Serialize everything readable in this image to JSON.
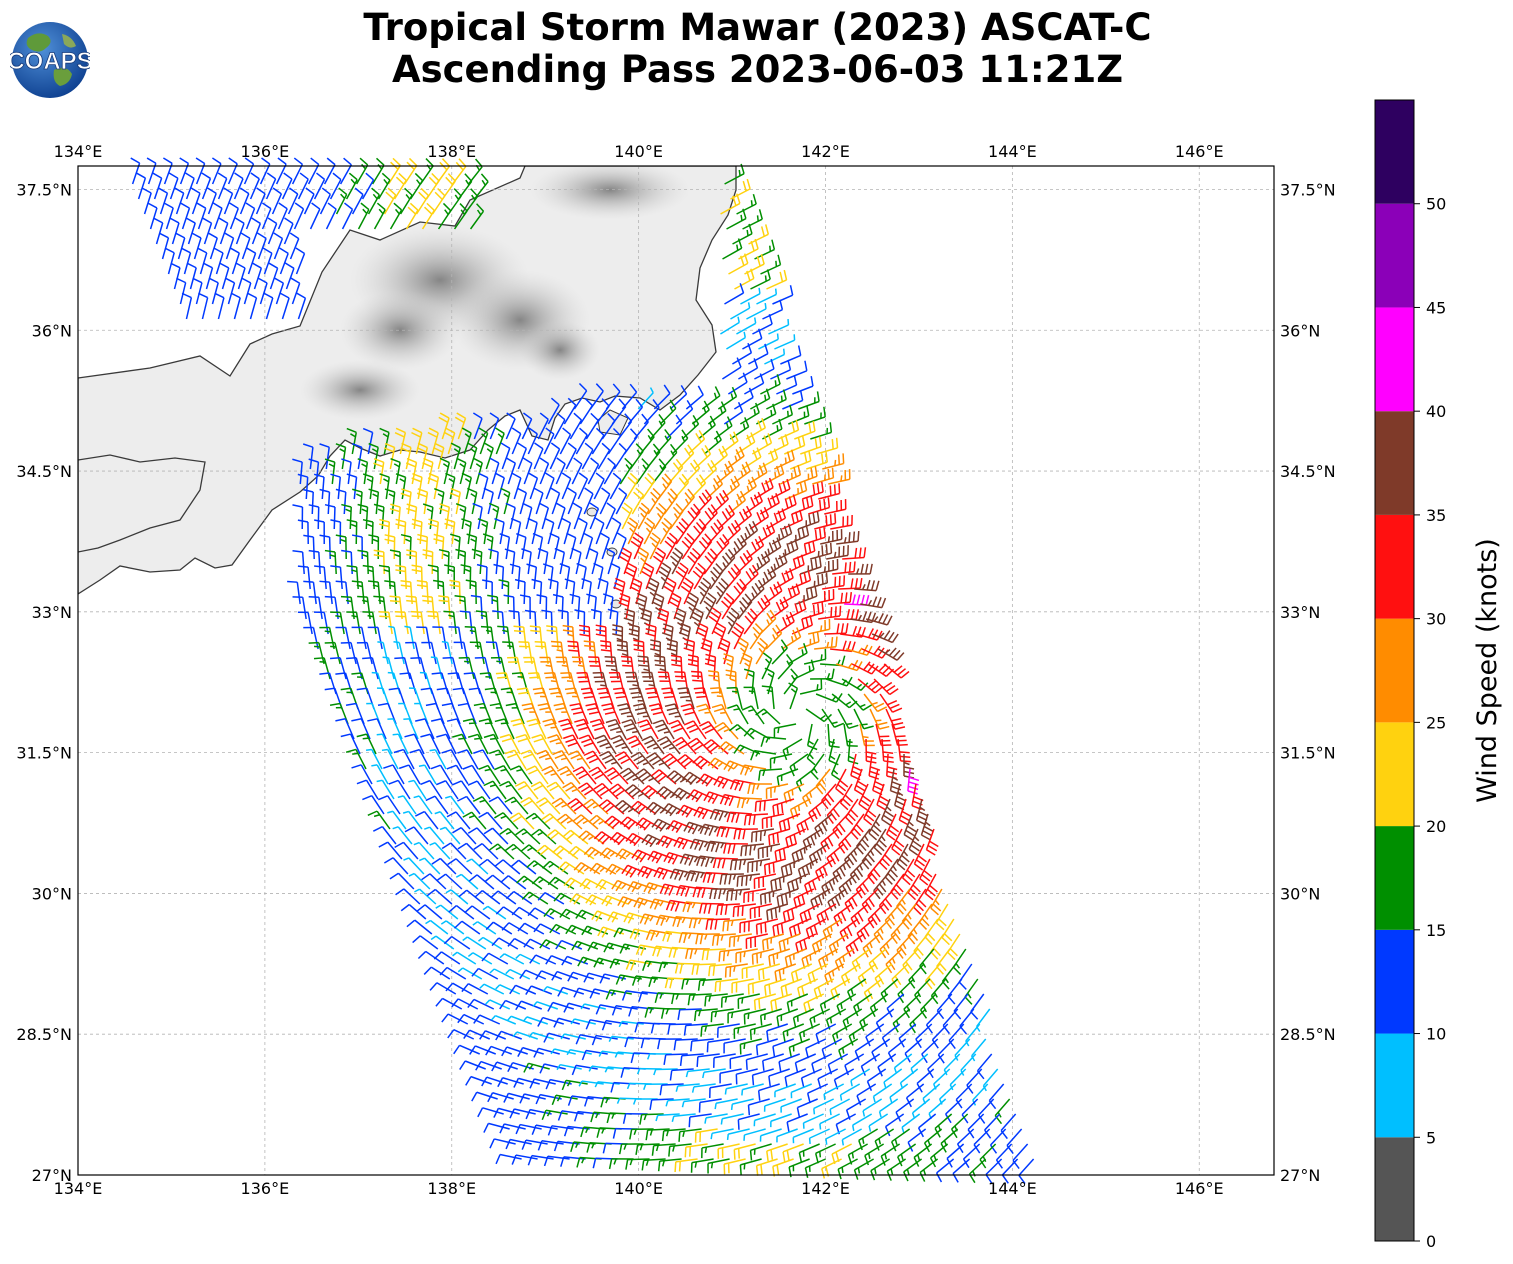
{
  "title": {
    "line1": "Tropical Storm Mawar (2023) ASCAT-C",
    "line2": "Ascending Pass 2023-06-03 11:21Z"
  },
  "logo": {
    "text": "COAPS",
    "icon": "globe-logo"
  },
  "chart_data": {
    "type": "wind-barb-map",
    "xlim": [
      134.0,
      146.8
    ],
    "ylim": [
      27.0,
      37.75
    ],
    "x_ticks": [
      134,
      136,
      138,
      140,
      142,
      144,
      146
    ],
    "x_tick_labels": [
      "134°E",
      "136°E",
      "138°E",
      "140°E",
      "142°E",
      "144°E",
      "146°E"
    ],
    "y_ticks": [
      27,
      28.5,
      30,
      31.5,
      33,
      34.5,
      36,
      37.5
    ],
    "y_tick_labels": [
      "27°N",
      "28.5°N",
      "30°N",
      "31.5°N",
      "33°N",
      "34.5°N",
      "36°N",
      "37.5°N"
    ],
    "grid": true,
    "storm_center": {
      "lon": 141.7,
      "lat": 31.9
    },
    "colorbar": {
      "label": "Wind Speed (knots)",
      "bounds": [
        0,
        5,
        10,
        15,
        20,
        25,
        30,
        35,
        40,
        45,
        50,
        55
      ],
      "tick_labels": [
        "0",
        "5",
        "10",
        "15",
        "20",
        "25",
        "30",
        "35",
        "40",
        "45",
        "50"
      ],
      "colors": [
        "#555555",
        "#00bfff",
        "#0039ff",
        "#008f00",
        "#ffd20f",
        "#ff8c00",
        "#ff1010",
        "#7f3a29",
        "#ff00ff",
        "#8b00b8",
        "#2e0060"
      ]
    }
  }
}
